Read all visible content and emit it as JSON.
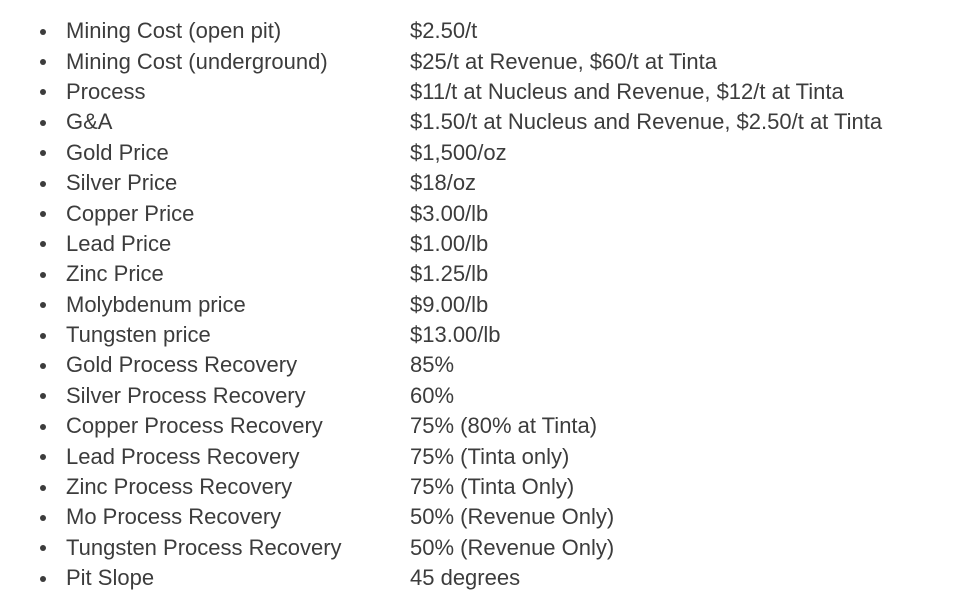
{
  "page": {
    "background": "#ffffff",
    "text_color": "#3c3c3c"
  },
  "assumptions": {
    "items": [
      {
        "label": "Mining Cost (open pit)",
        "value": "$2.50/t"
      },
      {
        "label": "Mining Cost (underground)",
        "value": "$25/t at Revenue, $60/t at Tinta"
      },
      {
        "label": "Process",
        "value": "$11/t at Nucleus and Revenue, $12/t at Tinta"
      },
      {
        "label": "G&A",
        "value": "$1.50/t at Nucleus and Revenue, $2.50/t at Tinta"
      },
      {
        "label": "Gold Price",
        "value": "$1,500/oz"
      },
      {
        "label": "Silver Price",
        "value": "$18/oz"
      },
      {
        "label": "Copper Price",
        "value": "$3.00/lb"
      },
      {
        "label": "Lead Price",
        "value": "$1.00/lb"
      },
      {
        "label": "Zinc Price",
        "value": "$1.25/lb"
      },
      {
        "label": "Molybdenum price",
        "value": "$9.00/lb"
      },
      {
        "label": "Tungsten price",
        "value": "$13.00/lb"
      },
      {
        "label": "Gold Process Recovery",
        "value": "85%"
      },
      {
        "label": "Silver Process Recovery",
        "value": "60%"
      },
      {
        "label": "Copper Process Recovery",
        "value": "75% (80% at Tinta)"
      },
      {
        "label": "Lead Process Recovery",
        "value": "75% (Tinta only)"
      },
      {
        "label": "Zinc Process Recovery",
        "value": "75% (Tinta Only)"
      },
      {
        "label": "Mo Process Recovery",
        "value": "50% (Revenue Only)"
      },
      {
        "label": "Tungsten Process Recovery",
        "value": "50% (Revenue Only)"
      },
      {
        "label": "Pit Slope",
        "value": "45 degrees"
      }
    ]
  }
}
